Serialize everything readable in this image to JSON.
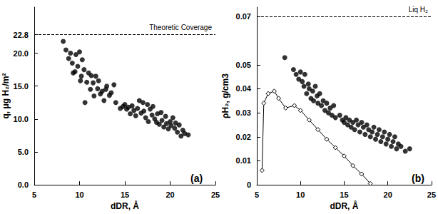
{
  "chart_data": [
    {
      "type": "scatter",
      "title": "(a)",
      "x_label": "dDR, Å",
      "y_label": "q, μg H₂/m²",
      "xlim": [
        5,
        25
      ],
      "xticks": [
        5,
        10,
        15,
        20,
        25
      ],
      "ylim": [
        0,
        27
      ],
      "yticks": [
        {
          "value": 0,
          "label": "0.0"
        },
        {
          "value": 5,
          "label": "5.0"
        },
        {
          "value": 10,
          "label": "10.0"
        },
        {
          "value": 15,
          "label": "15.0"
        },
        {
          "value": 20,
          "label": "20.0"
        },
        22.8
      ],
      "grid": false,
      "annotations": [
        {
          "text": "Theoretic Coverage",
          "y": 22.8,
          "line_style": "dashed"
        }
      ],
      "series": [
        {
          "type": "scatter",
          "color": "#000000",
          "marker": "circle",
          "x": [
            8.2,
            8.5,
            8.8,
            9.0,
            9.2,
            9.3,
            9.5,
            9.6,
            9.8,
            10.0,
            10.1,
            10.2,
            10.3,
            10.5,
            10.6,
            10.8,
            11.0,
            11.2,
            11.3,
            11.5,
            11.6,
            11.8,
            12.0,
            12.1,
            12.3,
            12.5,
            12.7,
            12.9,
            13.0,
            13.3,
            13.5,
            13.8,
            14.0,
            14.5,
            14.8,
            15.0,
            15.2,
            15.4,
            15.6,
            15.8,
            16.0,
            16.2,
            16.4,
            16.6,
            16.8,
            17.0,
            17.1,
            17.3,
            17.5,
            17.6,
            17.8,
            18.0,
            18.1,
            18.3,
            18.5,
            18.6,
            18.8,
            19.0,
            19.1,
            19.3,
            19.5,
            19.6,
            19.8,
            20.0,
            20.1,
            20.3,
            20.5,
            20.6,
            20.8,
            21.0,
            21.2,
            21.4,
            21.6,
            22.0
          ],
          "values": [
            21.8,
            20.5,
            19.2,
            20.0,
            18.5,
            17.0,
            17.2,
            19.8,
            18.0,
            20.2,
            15.8,
            16.5,
            19.0,
            17.5,
            12.5,
            15.6,
            17.0,
            14.5,
            16.6,
            15.5,
            13.5,
            16.5,
            14.6,
            15.8,
            13.8,
            14.2,
            12.8,
            14.5,
            15.0,
            13.6,
            14.0,
            15.2,
            12.5,
            11.6,
            11.9,
            12.2,
            11.5,
            11.8,
            10.8,
            12.0,
            11.3,
            10.5,
            11.6,
            12.8,
            10.9,
            12.5,
            11.2,
            10.2,
            12.2,
            9.6,
            11.5,
            10.6,
            11.9,
            10.0,
            9.5,
            10.8,
            9.2,
            11.0,
            9.8,
            8.8,
            10.4,
            9.3,
            8.5,
            9.6,
            9.0,
            10.2,
            8.6,
            9.4,
            8.0,
            9.1,
            7.4,
            8.3,
            7.8,
            7.6
          ]
        }
      ]
    },
    {
      "type": "scatter",
      "title": "(b)",
      "x_label": "dDR, Å",
      "y_label": "ρH₂, g/cm3",
      "xlim": [
        5,
        25
      ],
      "xticks": [
        5,
        10,
        15,
        20,
        25
      ],
      "ylim": [
        0,
        0.074
      ],
      "yticks": [
        0,
        0.01,
        0.02,
        0.03,
        0.04,
        0.05,
        0.07
      ],
      "grid": false,
      "annotations": [
        {
          "text": "Liq H₂",
          "y": 0.07,
          "line_style": "dashed"
        }
      ],
      "series": [
        {
          "type": "scatter",
          "color": "#000000",
          "marker": "circle",
          "x": [
            8.2,
            9.2,
            9.5,
            9.8,
            10.0,
            10.2,
            10.4,
            10.5,
            10.7,
            10.9,
            11.0,
            11.2,
            11.4,
            11.5,
            11.7,
            11.9,
            12.0,
            12.2,
            12.4,
            12.6,
            12.8,
            13.0,
            13.2,
            13.4,
            13.6,
            13.8,
            14.0,
            14.5,
            14.8,
            15.0,
            15.2,
            15.4,
            15.6,
            15.8,
            16.0,
            16.2,
            16.4,
            16.6,
            16.8,
            17.0,
            17.2,
            17.4,
            17.6,
            17.8,
            18.0,
            18.2,
            18.4,
            18.6,
            18.8,
            19.0,
            19.2,
            19.4,
            19.6,
            19.8,
            20.0,
            20.2,
            20.4,
            20.6,
            20.8,
            21.0,
            21.2,
            21.5,
            22.0,
            22.5
          ],
          "values": [
            0.053,
            0.048,
            0.046,
            0.044,
            0.047,
            0.043,
            0.041,
            0.046,
            0.038,
            0.042,
            0.04,
            0.036,
            0.039,
            0.035,
            0.041,
            0.037,
            0.034,
            0.038,
            0.033,
            0.035,
            0.031,
            0.034,
            0.03,
            0.032,
            0.029,
            0.033,
            0.028,
            0.029,
            0.027,
            0.026,
            0.028,
            0.025,
            0.027,
            0.024,
            0.026,
            0.023,
            0.027,
            0.025,
            0.022,
            0.026,
            0.024,
            0.021,
            0.025,
            0.023,
            0.02,
            0.022,
            0.024,
            0.019,
            0.021,
            0.023,
            0.018,
            0.02,
            0.022,
            0.017,
            0.019,
            0.021,
            0.016,
            0.018,
            0.02,
            0.015,
            0.017,
            0.016,
            0.014,
            0.015
          ]
        },
        {
          "type": "line",
          "color": "#000000",
          "marker": "open-diamond",
          "x": [
            5.6,
            5.8,
            6.3,
            7.0,
            7.5,
            8.3,
            9.3,
            10.0,
            11.0,
            12.0,
            13.0,
            14.0,
            15.0,
            16.0,
            17.0,
            18.0
          ],
          "values": [
            0.006,
            0.034,
            0.038,
            0.039,
            0.036,
            0.032,
            0.033,
            0.031,
            0.027,
            0.023,
            0.019,
            0.0155,
            0.012,
            0.008,
            0.0045,
            0.0005
          ]
        }
      ]
    }
  ]
}
